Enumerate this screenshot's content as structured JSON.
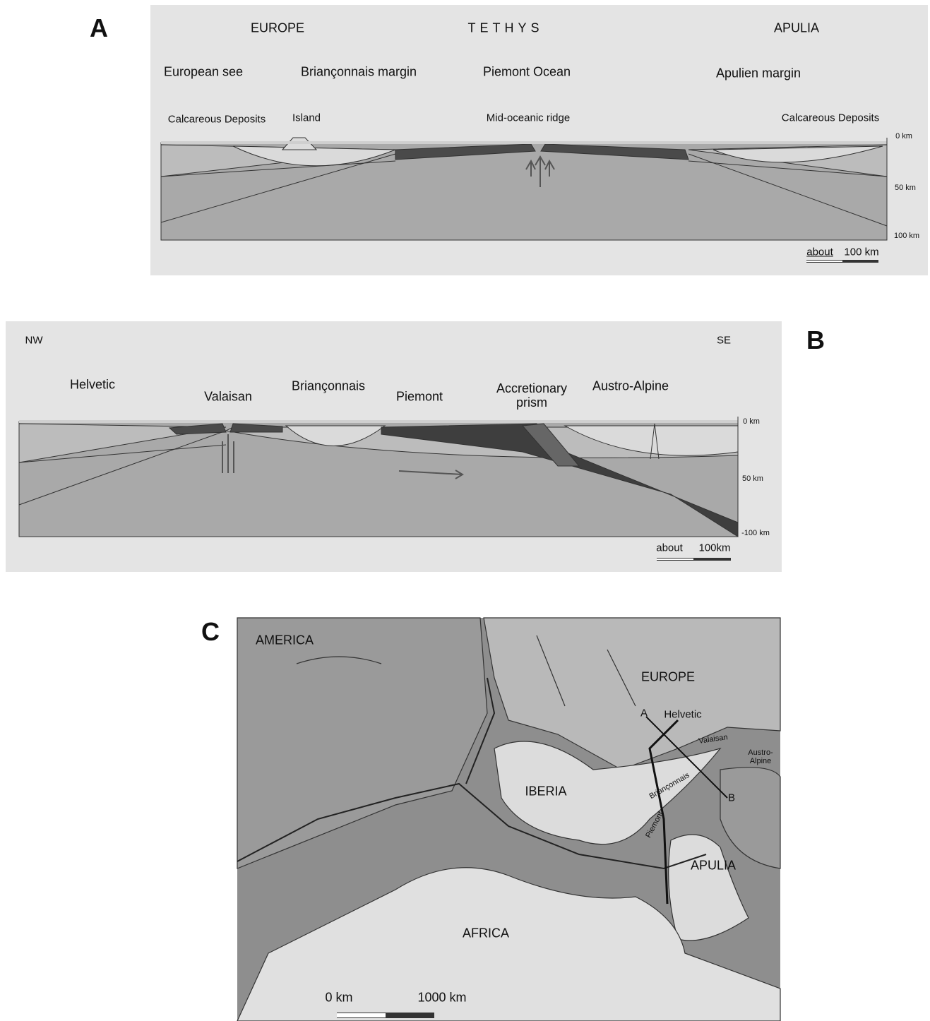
{
  "panel_a": {
    "label": "A",
    "regions": [
      "EUROPE",
      "TETHYS",
      "APULIA"
    ],
    "zones": [
      "European see",
      "Briançonnais margin",
      "Piemont Ocean",
      "Apulien margin"
    ],
    "features": [
      "Calcareous Deposits",
      "Island",
      "Mid-oceanic ridge",
      "Calcareous Deposits"
    ],
    "depths": [
      "0 km",
      "50 km",
      "100 km"
    ],
    "scale": [
      "about",
      "100 km"
    ]
  },
  "panel_b": {
    "label": "B",
    "directions": [
      "NW",
      "SE"
    ],
    "zones": [
      "Helvetic",
      "Valaisan",
      "Briançonnais",
      "Piemont",
      "Accretionary prism",
      "Austro-Alpine"
    ],
    "depths": [
      "0 km",
      "50 km",
      "-100 km"
    ],
    "scale": [
      "about",
      "100km"
    ]
  },
  "panel_c": {
    "label": "C",
    "plates": [
      "AMERICA",
      "EUROPE",
      "IBERIA",
      "APULIA",
      "AFRICA"
    ],
    "domains": [
      "Helvetic",
      "Valaisan",
      "Austro-Alpine",
      "Briançonnais",
      "Piemont"
    ],
    "section_ends": [
      "A",
      "B"
    ],
    "scale": [
      "0 km",
      "1000 km"
    ]
  }
}
